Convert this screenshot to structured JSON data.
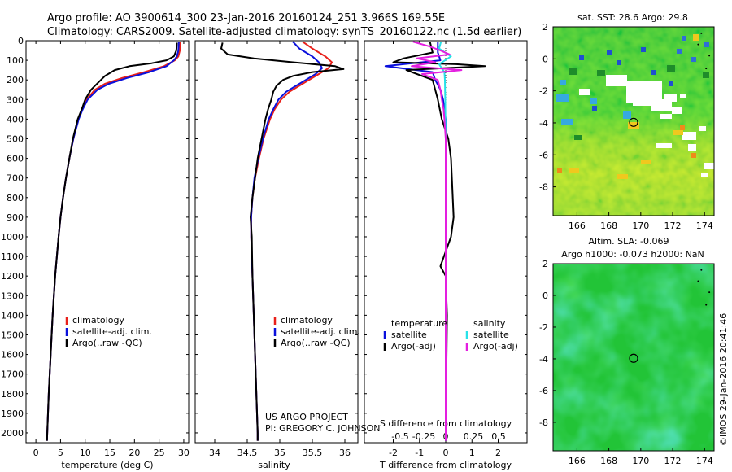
{
  "title": {
    "line1": "Argo profile: AO 3900614_300 23-Jan-2016 20160124_251 3.966S 169.55E",
    "line2": "Climatology: CARS2009. Satellite-adjusted climatology: synTS_20160122.nc (1.5d earlier)"
  },
  "credits": {
    "project": "US ARGO PROJECT",
    "pi": "PI: GREGORY C. JOHNSON"
  },
  "footer": "©IMOS 29-Jan-2016 20:41:46",
  "colors": {
    "red": "#e8201a",
    "blue": "#0a10dc",
    "black": "#000000",
    "cyan": "#27e2e8",
    "magenta": "#e41ee0"
  },
  "chart_data": [
    {
      "type": "line",
      "name": "temperature-profile",
      "xlabel": "temperature (deg C)",
      "ylabel": "",
      "xlim": [
        -2,
        31
      ],
      "ylim": [
        2050,
        0
      ],
      "xticks": [
        0,
        5,
        10,
        15,
        20,
        25,
        30
      ],
      "yticks": [
        0,
        100,
        200,
        300,
        400,
        500,
        600,
        700,
        800,
        900,
        1000,
        1100,
        1200,
        1300,
        1400,
        1500,
        1600,
        1700,
        1800,
        1900,
        2000
      ],
      "legend": {
        "position": "center-left",
        "entries": [
          "climatology",
          "satellite-adj. clim.",
          "Argo(..raw -QC)"
        ]
      },
      "series": [
        {
          "name": "climatology",
          "color": "red",
          "y": [
            5,
            50,
            80,
            100,
            130,
            160,
            190,
            220,
            250,
            300,
            350,
            400,
            500,
            600,
            700,
            800,
            900,
            1000,
            1200,
            1400,
            1600,
            1800,
            2000,
            2040
          ],
          "values": [
            29.3,
            29.2,
            28.9,
            28.2,
            26.0,
            22.0,
            17.5,
            14.0,
            12.0,
            10.3,
            9.4,
            8.6,
            7.6,
            6.8,
            6.1,
            5.5,
            5.0,
            4.6,
            3.9,
            3.4,
            3.0,
            2.6,
            2.3,
            2.25
          ]
        },
        {
          "name": "satellite-adj. clim.",
          "color": "blue",
          "y": [
            5,
            50,
            80,
            100,
            130,
            160,
            190,
            220,
            250,
            300,
            350,
            400,
            500,
            600,
            700,
            800,
            900,
            1000,
            1200,
            1400,
            1600,
            1800,
            2000,
            2040
          ],
          "values": [
            29.0,
            28.9,
            28.6,
            28.0,
            26.5,
            23.0,
            18.5,
            14.8,
            12.5,
            10.5,
            9.5,
            8.7,
            7.6,
            6.8,
            6.1,
            5.5,
            5.0,
            4.6,
            3.9,
            3.4,
            3.0,
            2.6,
            2.3,
            2.25
          ]
        },
        {
          "name": "Argo(..raw -QC)",
          "color": "black",
          "y": [
            10,
            50,
            80,
            100,
            115,
            130,
            150,
            180,
            210,
            250,
            300,
            350,
            400,
            500,
            600,
            700,
            800,
            900,
            1000,
            1200,
            1400,
            1600,
            1800,
            2000,
            2040
          ],
          "values": [
            28.6,
            28.5,
            28.0,
            26.5,
            23.5,
            19.0,
            16.0,
            14.0,
            12.8,
            11.2,
            10.0,
            9.3,
            8.5,
            7.5,
            6.8,
            6.1,
            5.5,
            5.0,
            4.6,
            3.9,
            3.4,
            3.0,
            2.6,
            2.3,
            2.25
          ]
        }
      ]
    },
    {
      "type": "line",
      "name": "salinity-profile",
      "xlabel": "salinity",
      "xlim": [
        33.7,
        36.2
      ],
      "ylim": [
        2050,
        0
      ],
      "xticks": [
        34,
        34.5,
        35,
        35.5,
        36
      ],
      "legend": {
        "position": "center-right",
        "entries": [
          "climatology",
          "satellite-adj. clim.",
          "Argo(..raw -QC)"
        ]
      },
      "series": [
        {
          "name": "climatology",
          "color": "red",
          "y": [
            5,
            40,
            80,
            110,
            140,
            170,
            200,
            230,
            260,
            300,
            350,
            400,
            500,
            600,
            700,
            800,
            900,
            1000,
            1200,
            1400,
            1600,
            1800,
            2000,
            2040
          ],
          "values": [
            35.35,
            35.5,
            35.7,
            35.8,
            35.75,
            35.6,
            35.45,
            35.3,
            35.15,
            35.02,
            34.92,
            34.85,
            34.75,
            34.68,
            34.62,
            34.58,
            34.56,
            34.56,
            34.58,
            34.6,
            34.62,
            34.64,
            34.66,
            34.66
          ]
        },
        {
          "name": "satellite-adj. clim.",
          "color": "blue",
          "y": [
            5,
            40,
            80,
            110,
            140,
            170,
            200,
            230,
            260,
            300,
            350,
            400,
            500,
            600,
            700,
            800,
            900,
            1000,
            1200,
            1400,
            1600,
            1800,
            2000,
            2040
          ],
          "values": [
            35.2,
            35.3,
            35.5,
            35.6,
            35.65,
            35.55,
            35.4,
            35.25,
            35.1,
            34.98,
            34.9,
            34.83,
            34.74,
            34.67,
            34.61,
            34.58,
            34.56,
            34.56,
            34.58,
            34.6,
            34.62,
            34.64,
            34.66,
            34.66
          ]
        },
        {
          "name": "Argo(..raw -QC)",
          "color": "black",
          "y": [
            10,
            40,
            70,
            90,
            110,
            130,
            145,
            160,
            180,
            200,
            230,
            260,
            300,
            350,
            400,
            500,
            600,
            700,
            800,
            900,
            1000,
            1200,
            1400,
            1600,
            1800,
            2000,
            2040
          ],
          "values": [
            34.12,
            34.1,
            34.2,
            34.6,
            35.2,
            35.85,
            35.98,
            35.5,
            35.2,
            35.05,
            34.95,
            34.9,
            34.87,
            34.82,
            34.78,
            34.72,
            34.66,
            34.62,
            34.58,
            34.55,
            34.57,
            34.58,
            34.6,
            34.62,
            34.64,
            34.66,
            34.66
          ]
        }
      ]
    },
    {
      "type": "line",
      "name": "difference-profile",
      "xlabel": "T difference from climatology",
      "xlabel_top": "S difference from climatology",
      "xlim": [
        -3.1,
        3.1
      ],
      "ylim": [
        2050,
        0
      ],
      "xticks": [
        -2,
        -1,
        0,
        1,
        2
      ],
      "xticks_top": [
        "-0.5",
        "-0.25",
        "0",
        "0.25",
        "0.5"
      ],
      "legend": {
        "position": "center",
        "temperature_header": "temperature",
        "salinity_header": "salinity",
        "temperature_entries": [
          "satellite",
          "Argo(-adj)"
        ],
        "salinity_entries": [
          "satellite",
          "Argo(-adj)"
        ]
      },
      "series": [
        {
          "name": "temperature satellite",
          "color": "blue",
          "y": [
            5,
            60,
            100,
            130,
            160,
            200,
            250,
            300,
            400,
            500,
            700,
            1000,
            1500,
            2000,
            2040
          ],
          "values": [
            -0.3,
            -0.3,
            -0.2,
            -2.3,
            -0.5,
            -0.4,
            -0.2,
            -0.1,
            0,
            0,
            0,
            0,
            0,
            0,
            0
          ]
        },
        {
          "name": "temperature Argo(-adj)",
          "color": "black",
          "y": [
            5,
            60,
            90,
            110,
            120,
            130,
            150,
            200,
            250,
            300,
            400,
            500,
            600,
            900,
            1000,
            1150,
            1200,
            1400,
            2000,
            2040
          ],
          "values": [
            -0.6,
            -0.5,
            -1.6,
            -2.0,
            0.4,
            1.5,
            -1.5,
            -0.5,
            -0.4,
            -0.3,
            -0.15,
            0.1,
            0.2,
            0.3,
            0.2,
            -0.2,
            0,
            0.05,
            0,
            0
          ]
        },
        {
          "name": "salinity satellite",
          "color": "cyan",
          "y": [
            5,
            40,
            80,
            120,
            160,
            200,
            300,
            400,
            500,
            700,
            1000,
            1500,
            2000,
            2040
          ],
          "values": [
            -0.18,
            -0.25,
            0.2,
            -0.25,
            -0.05,
            -0.03,
            -0.02,
            -0.01,
            0,
            0,
            0,
            0,
            0,
            0
          ]
        },
        {
          "name": "salinity Argo(-adj)",
          "color": "magenta",
          "y": [
            5,
            30,
            50,
            70,
            90,
            110,
            130,
            150,
            170,
            200,
            250,
            300,
            350,
            400,
            500,
            700,
            1000,
            1500,
            2000,
            2040
          ],
          "values": [
            -1.25,
            -0.6,
            -0.2,
            0.15,
            -1.1,
            -0.4,
            -1.3,
            0.6,
            -0.9,
            -0.3,
            -0.2,
            -0.15,
            -0.08,
            -0.05,
            0,
            0,
            0,
            0,
            0,
            0
          ]
        }
      ]
    },
    {
      "type": "heatmap",
      "name": "sst-map",
      "title": "sat. SST: 28.6  Argo: 29.8",
      "xlim": [
        164.5,
        174.6
      ],
      "ylim": [
        -9.8,
        2
      ],
      "xticks": [
        166,
        168,
        170,
        172,
        174
      ],
      "yticks": [
        2,
        0,
        -2,
        -4,
        -6,
        -8
      ],
      "marker": {
        "lon": 169.55,
        "lat": -3.966
      }
    },
    {
      "type": "heatmap",
      "name": "sla-map",
      "title": "Altim. SLA: -0.069",
      "subtitle": "Argo h1000: -0.073 h2000: NaN",
      "xlim": [
        164.5,
        174.6
      ],
      "ylim": [
        -9.8,
        2
      ],
      "xticks": [
        166,
        168,
        170,
        172,
        174
      ],
      "yticks": [
        2,
        0,
        -2,
        -4,
        -6,
        -8
      ],
      "marker": {
        "lon": 169.55,
        "lat": -3.966
      }
    }
  ]
}
